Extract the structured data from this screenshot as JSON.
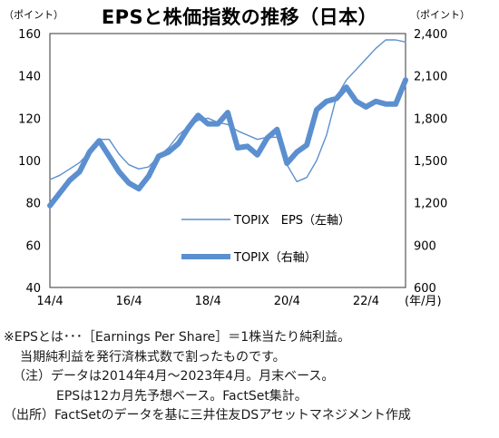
{
  "chart_data": {
    "type": "line",
    "title": "EPSと株価指数の推移（日本）",
    "left_unit": "（ポイント）",
    "right_unit": "（ポイント）",
    "x_unit": "(年/月)",
    "x_tick_labels": [
      "14/4",
      "16/4",
      "18/4",
      "20/4",
      "22/4"
    ],
    "x_range": [
      "2014-04",
      "2023-04"
    ],
    "y_left": {
      "range": [
        40,
        160
      ],
      "ticks": [
        "40",
        "60",
        "80",
        "100",
        "120",
        "140",
        "160"
      ]
    },
    "y_right": {
      "range": [
        600,
        2400
      ],
      "ticks": [
        "600",
        "900",
        "1,200",
        "1,500",
        "1,800",
        "2,100",
        "2,400"
      ]
    },
    "grid": false,
    "legend_position": "bottom-right",
    "series": [
      {
        "name": "TOPIX　EPS（左軸）",
        "axis": "left",
        "color": "#5b8fcf",
        "x": [
          "2014-04",
          "2014-07",
          "2014-10",
          "2015-01",
          "2015-04",
          "2015-07",
          "2015-10",
          "2016-01",
          "2016-04",
          "2016-07",
          "2016-10",
          "2017-01",
          "2017-04",
          "2017-07",
          "2017-10",
          "2018-01",
          "2018-04",
          "2018-07",
          "2018-10",
          "2019-01",
          "2019-04",
          "2019-07",
          "2019-10",
          "2020-01",
          "2020-04",
          "2020-07",
          "2020-10",
          "2021-01",
          "2021-04",
          "2021-07",
          "2021-10",
          "2022-01",
          "2022-04",
          "2022-07",
          "2022-10",
          "2023-01",
          "2023-04"
        ],
        "values": [
          91,
          93,
          96,
          99,
          104,
          110,
          110,
          103,
          98,
          96,
          97,
          102,
          106,
          112,
          116,
          119,
          120,
          118,
          117,
          114,
          112,
          110,
          111,
          111,
          98,
          90,
          92,
          100,
          112,
          130,
          138,
          143,
          148,
          153,
          157,
          157,
          156
        ]
      },
      {
        "name": "TOPIX（右軸）",
        "axis": "right",
        "color": "#5b8fcf",
        "x": [
          "2014-04",
          "2014-07",
          "2014-10",
          "2015-01",
          "2015-04",
          "2015-07",
          "2015-10",
          "2016-01",
          "2016-04",
          "2016-07",
          "2016-10",
          "2017-01",
          "2017-04",
          "2017-07",
          "2017-10",
          "2018-01",
          "2018-04",
          "2018-07",
          "2018-10",
          "2019-01",
          "2019-04",
          "2019-07",
          "2019-10",
          "2020-01",
          "2020-04",
          "2020-07",
          "2020-10",
          "2021-01",
          "2021-04",
          "2021-07",
          "2021-10",
          "2022-01",
          "2022-04",
          "2022-07",
          "2022-10",
          "2023-01",
          "2023-04"
        ],
        "values": [
          1180,
          1270,
          1360,
          1420,
          1560,
          1640,
          1530,
          1420,
          1340,
          1300,
          1390,
          1530,
          1560,
          1620,
          1730,
          1820,
          1760,
          1760,
          1840,
          1590,
          1600,
          1540,
          1660,
          1720,
          1480,
          1560,
          1610,
          1860,
          1920,
          1940,
          2020,
          1920,
          1880,
          1920,
          1900,
          1900,
          2070
        ]
      }
    ]
  },
  "notes": {
    "line1": "※EPSとは･･･［Earnings Per Share］＝1株当たり純利益。",
    "line2": "当期純利益を発行済株式数で割ったものです。",
    "line3": "（注）データは2014年4月～2023年4月。月末ベース。",
    "line4": "EPSは12カ月先予想ベース。FactSet集計。",
    "line5": "（出所）FactSetのデータを基に三井住友DSアセットマネジメント作成"
  }
}
